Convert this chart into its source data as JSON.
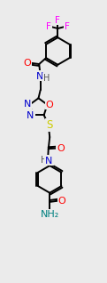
{
  "background_color": "#ebebeb",
  "atom_colors": {
    "C": "#000000",
    "N": "#0000cc",
    "O": "#ff0000",
    "S": "#cccc00",
    "F": "#ff00ff",
    "H": "#000000"
  },
  "bond_color": "#000000",
  "NH_color": "#008080",
  "NH2_color": "#008080"
}
